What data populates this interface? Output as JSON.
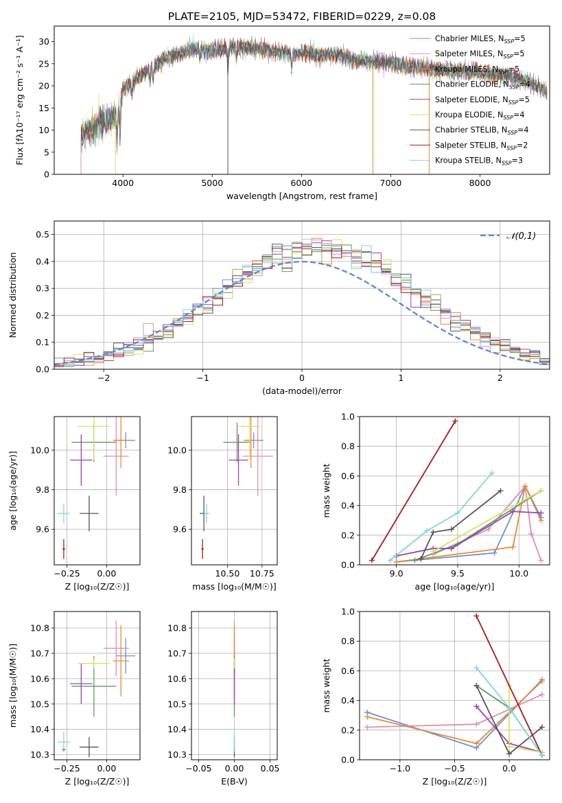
{
  "figure": {
    "title": "PLATE=2105, MJD=53472, FIBERID=0229, z=0.08"
  },
  "colors": {
    "chabrier_miles": "#6b8fd6",
    "salpeter_miles": "#e18bb6",
    "kroupa_miles": "#e88a2a",
    "chabrier_elodie": "#5a9a5e",
    "salpeter_elodie": "#9b3fb8",
    "kroupa_elodie": "#d4e35a",
    "chabrier_stelib": "#555555",
    "salpeter_stelib": "#a81818",
    "kroupa_stelib": "#7fd6dd",
    "gauss": "#5b86d9"
  },
  "chart_data": [
    {
      "id": "spectrum",
      "type": "line",
      "xlabel": "wavelength [Angstrom, rest frame]",
      "ylabel": "Flux [fλ10⁻¹⁷ erg cm⁻² s⁻¹ A⁻¹]",
      "xlim": [
        3230,
        8780
      ],
      "ylim": [
        0,
        33.5
      ],
      "xticks": [
        4000,
        5000,
        6000,
        7000,
        8000
      ],
      "yticks": [
        0,
        5,
        10,
        15,
        20,
        25,
        30
      ],
      "legend_position": "upper-right",
      "series": [
        {
          "key": "chabrier_miles",
          "name": "Chabrier MILES, N",
          "sub": "SSP",
          "nval": "=5"
        },
        {
          "key": "salpeter_miles",
          "name": "Salpeter MILES, N",
          "sub": "SSP",
          "nval": "=5"
        },
        {
          "key": "kroupa_miles",
          "name": "Kroupa MILES, N",
          "sub": "SSP",
          "nval": "=5"
        },
        {
          "key": "chabrier_elodie",
          "name": "Chabrier ELODIE, N",
          "sub": "SSP",
          "nval": "=4"
        },
        {
          "key": "salpeter_elodie",
          "name": "Salpeter ELODIE, N",
          "sub": "SSP",
          "nval": "=5"
        },
        {
          "key": "kroupa_elodie",
          "name": "Kroupa ELODIE, N",
          "sub": "SSP",
          "nval": "=4"
        },
        {
          "key": "chabrier_stelib",
          "name": "Chabrier STELIB, N",
          "sub": "SSP",
          "nval": "=4"
        },
        {
          "key": "salpeter_stelib",
          "name": "Salpeter STELIB, N",
          "sub": "SSP",
          "nval": "=2"
        },
        {
          "key": "kroupa_stelib",
          "name": "Kroupa STELIB, N",
          "sub": "SSP",
          "nval": "=3"
        }
      ],
      "continuum": [
        [
          3530,
          8
        ],
        [
          3600,
          10
        ],
        [
          3700,
          11
        ],
        [
          3800,
          12
        ],
        [
          3900,
          13
        ],
        [
          3960,
          15
        ],
        [
          4000,
          19
        ],
        [
          4100,
          21
        ],
        [
          4200,
          22.5
        ],
        [
          4300,
          23.5
        ],
        [
          4400,
          25
        ],
        [
          4500,
          26.5
        ],
        [
          4600,
          27
        ],
        [
          4700,
          27.5
        ],
        [
          4800,
          28.5
        ],
        [
          5000,
          28
        ],
        [
          5200,
          28.5
        ],
        [
          5400,
          28.5
        ],
        [
          5600,
          28
        ],
        [
          5800,
          27.5
        ],
        [
          5900,
          27
        ],
        [
          6000,
          27.5
        ],
        [
          6200,
          27
        ],
        [
          6400,
          27
        ],
        [
          6600,
          26
        ],
        [
          6800,
          25.5
        ],
        [
          7000,
          25
        ],
        [
          7200,
          24.5
        ],
        [
          7400,
          24
        ],
        [
          7600,
          23.5
        ],
        [
          7800,
          23.5
        ],
        [
          8000,
          22.8
        ],
        [
          8200,
          22.5
        ],
        [
          8400,
          21.8
        ],
        [
          8600,
          20.5
        ],
        [
          8750,
          18.5
        ]
      ],
      "absorption_lines": [
        [
          3934,
          -7
        ],
        [
          3968,
          -6
        ],
        [
          4101,
          -3
        ],
        [
          4304,
          -3
        ],
        [
          4340,
          -3
        ],
        [
          4861,
          -2
        ],
        [
          5175,
          -6
        ],
        [
          5270,
          -2
        ],
        [
          5890,
          -3
        ],
        [
          6563,
          -1
        ]
      ],
      "drop_lines": [
        [
          3530,
          "salpeter_miles"
        ],
        [
          3915,
          "kroupa_elodie"
        ],
        [
          5175,
          "chabrier_stelib"
        ],
        [
          6800,
          "kroupa_miles"
        ],
        [
          7430,
          "kroupa_miles"
        ]
      ]
    },
    {
      "id": "residuals",
      "type": "histogram",
      "xlabel": "(data-model)/error",
      "ylabel": "Normed distribution",
      "xlim": [
        -2.5,
        2.5
      ],
      "ylim": [
        0,
        0.55
      ],
      "xticks": [
        -2,
        -1,
        0,
        1,
        2
      ],
      "yticks": [
        0.0,
        0.1,
        0.2,
        0.3,
        0.4,
        0.5
      ],
      "bin_width": 0.1,
      "legend": {
        "label": "𝒩(0,1)",
        "position": "upper-right"
      },
      "series_keys": [
        "chabrier_miles",
        "salpeter_miles",
        "kroupa_miles",
        "chabrier_elodie",
        "salpeter_elodie",
        "kroupa_elodie",
        "chabrier_stelib",
        "salpeter_stelib",
        "kroupa_stelib"
      ]
    },
    {
      "id": "z_age",
      "type": "scatter",
      "xlabel": "Z [log₁₀(Z/Z☉)]",
      "ylabel": "age  [log₁₀(age/yr)]",
      "xlim": [
        -0.33,
        0.21
      ],
      "ylim": [
        9.42,
        10.17
      ],
      "xticks": [
        -0.25,
        0.0
      ],
      "yticks": [
        9.6,
        9.8,
        10.0
      ],
      "points": [
        {
          "key": "chabrier_miles",
          "x": 0.12,
          "y": 10.05,
          "xe": 0.06,
          "ye": 0.04
        },
        {
          "key": "salpeter_miles",
          "x": 0.06,
          "y": 9.97,
          "xe": 0.08,
          "ye": 0.2
        },
        {
          "key": "kroupa_miles",
          "x": 0.09,
          "y": 10.05,
          "xe": 0.05,
          "ye": 0.14
        },
        {
          "key": "chabrier_elodie",
          "x": -0.08,
          "y": 10.04,
          "xe": 0.14,
          "ye": 0.1
        },
        {
          "key": "salpeter_elodie",
          "x": -0.16,
          "y": 9.95,
          "xe": 0.07,
          "ye": 0.13
        },
        {
          "key": "kroupa_elodie",
          "x": -0.08,
          "y": 10.12,
          "xe": 0.1,
          "ye": 0.17
        },
        {
          "key": "chabrier_stelib",
          "x": -0.11,
          "y": 9.68,
          "xe": 0.06,
          "ye": 0.09
        },
        {
          "key": "salpeter_stelib",
          "x": -0.27,
          "y": 9.5,
          "xe": 0.01,
          "ye": 0.05
        },
        {
          "key": "kroupa_stelib",
          "x": -0.27,
          "y": 9.68,
          "xe": 0.04,
          "ye": 0.05
        }
      ]
    },
    {
      "id": "mass_age",
      "type": "scatter",
      "xlabel": "mass [log₁₀(M/M☉)]",
      "ylabel": "",
      "xlim": [
        10.24,
        10.86
      ],
      "ylim": [
        9.42,
        10.17
      ],
      "xticks": [
        10.5,
        10.75
      ],
      "yticks": [
        9.6,
        9.8,
        10.0
      ],
      "points": [
        {
          "key": "chabrier_miles",
          "x": 10.69,
          "y": 10.05,
          "xe": 0.07,
          "ye": 0.04
        },
        {
          "key": "salpeter_miles",
          "x": 10.72,
          "y": 9.97,
          "xe": 0.11,
          "ye": 0.2
        },
        {
          "key": "kroupa_miles",
          "x": 10.67,
          "y": 10.05,
          "xe": 0.05,
          "ye": 0.14
        },
        {
          "key": "chabrier_elodie",
          "x": 10.57,
          "y": 10.04,
          "xe": 0.1,
          "ye": 0.1
        },
        {
          "key": "salpeter_elodie",
          "x": 10.58,
          "y": 9.95,
          "xe": 0.07,
          "ye": 0.13
        },
        {
          "key": "kroupa_elodie",
          "x": 10.66,
          "y": 10.12,
          "xe": 0.08,
          "ye": 0.17
        },
        {
          "key": "chabrier_stelib",
          "x": 10.33,
          "y": 9.68,
          "xe": 0.03,
          "ye": 0.09
        },
        {
          "key": "salpeter_stelib",
          "x": 10.32,
          "y": 9.5,
          "xe": 0.01,
          "ye": 0.05
        },
        {
          "key": "kroupa_stelib",
          "x": 10.35,
          "y": 9.68,
          "xe": 0.02,
          "ye": 0.05
        }
      ]
    },
    {
      "id": "age_weight",
      "type": "line",
      "xlabel": "age  [log₁₀(age/yr)]",
      "ylabel": "mass weight",
      "xlim": [
        8.7,
        10.25
      ],
      "ylim": [
        0,
        1.0
      ],
      "xticks": [
        9.0,
        9.5,
        10.0
      ],
      "yticks": [
        0.0,
        0.2,
        0.4,
        0.6,
        0.8,
        1.0
      ],
      "series": [
        {
          "key": "chabrier_miles",
          "x": [
            9.0,
            9.8,
            10.05,
            10.18
          ],
          "y": [
            0.02,
            0.08,
            0.53,
            0.32
          ]
        },
        {
          "key": "salpeter_miles",
          "x": [
            9.3,
            9.75,
            10.05,
            10.1,
            10.18
          ],
          "y": [
            0.07,
            0.24,
            0.53,
            0.21,
            0.03
          ]
        },
        {
          "key": "kroupa_miles",
          "x": [
            9.0,
            9.95,
            10.05,
            10.18
          ],
          "y": [
            0.02,
            0.12,
            0.53,
            0.3
          ]
        },
        {
          "key": "chabrier_elodie",
          "x": [
            9.15,
            9.5,
            10.18
          ],
          "y": [
            0.03,
            0.14,
            0.5
          ]
        },
        {
          "key": "salpeter_elodie",
          "x": [
            9.0,
            9.3,
            9.45,
            9.95,
            10.18
          ],
          "y": [
            0.06,
            0.11,
            0.11,
            0.36,
            0.35
          ]
        },
        {
          "key": "kroupa_elodie",
          "x": [
            9.3,
            10.18
          ],
          "y": [
            0.09,
            0.5
          ]
        },
        {
          "key": "chabrier_stelib",
          "x": [
            9.2,
            9.3,
            9.45,
            9.85
          ],
          "y": [
            0.04,
            0.22,
            0.24,
            0.5
          ]
        },
        {
          "key": "salpeter_stelib",
          "x": [
            8.8,
            9.48
          ],
          "y": [
            0.03,
            0.97
          ]
        },
        {
          "key": "kroupa_stelib",
          "x": [
            8.95,
            9.25,
            9.5,
            9.78
          ],
          "y": [
            0.03,
            0.23,
            0.35,
            0.62
          ]
        }
      ]
    },
    {
      "id": "z_mass",
      "type": "scatter",
      "xlabel": "Z [log₁₀(Z/Z☉)]",
      "ylabel": "mass [log₁₀(M/M☉)]",
      "xlim": [
        -0.33,
        0.21
      ],
      "ylim": [
        10.28,
        10.865
      ],
      "xticks": [
        -0.25,
        0.0
      ],
      "yticks": [
        10.3,
        10.4,
        10.5,
        10.6,
        10.7,
        10.8
      ],
      "points": [
        {
          "key": "chabrier_miles",
          "x": 0.12,
          "y": 10.69,
          "xe": 0.06,
          "ye": 0.07
        },
        {
          "key": "salpeter_miles",
          "x": 0.06,
          "y": 10.72,
          "xe": 0.08,
          "ye": 0.11
        },
        {
          "key": "kroupa_miles",
          "x": 0.09,
          "y": 10.67,
          "xe": 0.05,
          "ye": 0.14
        },
        {
          "key": "chabrier_elodie",
          "x": -0.08,
          "y": 10.57,
          "xe": 0.14,
          "ye": 0.12
        },
        {
          "key": "salpeter_elodie",
          "x": -0.16,
          "y": 10.58,
          "xe": 0.07,
          "ye": 0.08
        },
        {
          "key": "kroupa_elodie",
          "x": -0.08,
          "y": 10.66,
          "xe": 0.1,
          "ye": 0.02
        },
        {
          "key": "chabrier_stelib",
          "x": -0.11,
          "y": 10.33,
          "xe": 0.06,
          "ye": 0.04
        },
        {
          "key": "salpeter_stelib",
          "x": -0.27,
          "y": 10.32,
          "xe": 0.01,
          "ye": 0.01
        },
        {
          "key": "kroupa_stelib",
          "x": -0.27,
          "y": 10.35,
          "xe": 0.04,
          "ye": 0.04
        }
      ]
    },
    {
      "id": "ebv_mass",
      "type": "scatter",
      "xlabel": "E(B-V)",
      "ylabel": "",
      "xlim": [
        -0.06,
        0.06
      ],
      "ylim": [
        10.28,
        10.865
      ],
      "xticks": [
        -0.05,
        0.0,
        0.05
      ],
      "yticks": [
        10.3,
        10.4,
        10.5,
        10.6,
        10.7,
        10.8
      ],
      "points": [
        {
          "key": "chabrier_miles",
          "x": 0.0,
          "y": 10.69,
          "xe": 0.0,
          "ye": 0.07
        },
        {
          "key": "salpeter_miles",
          "x": 0.0,
          "y": 10.72,
          "xe": 0.0,
          "ye": 0.11
        },
        {
          "key": "kroupa_miles",
          "x": 0.0,
          "y": 10.67,
          "xe": 0.0,
          "ye": 0.14
        },
        {
          "key": "chabrier_elodie",
          "x": 0.0,
          "y": 10.57,
          "xe": 0.0,
          "ye": 0.12
        },
        {
          "key": "salpeter_elodie",
          "x": 0.0,
          "y": 10.58,
          "xe": 0.0,
          "ye": 0.08
        },
        {
          "key": "kroupa_elodie",
          "x": 0.0,
          "y": 10.66,
          "xe": 0.0,
          "ye": 0.02
        },
        {
          "key": "chabrier_stelib",
          "x": 0.0,
          "y": 10.33,
          "xe": 0.0,
          "ye": 0.04
        },
        {
          "key": "salpeter_stelib",
          "x": 0.0,
          "y": 10.32,
          "xe": 0.0,
          "ye": 0.01
        },
        {
          "key": "kroupa_stelib",
          "x": 0.0,
          "y": 10.35,
          "xe": 0.0,
          "ye": 0.04
        }
      ]
    },
    {
      "id": "z_weight",
      "type": "line",
      "xlabel": "Z [log₁₀(Z/Z☉)]",
      "ylabel": "mass weight",
      "xlim": [
        -1.37,
        0.37
      ],
      "ylim": [
        0,
        1.0
      ],
      "xticks": [
        -1.0,
        -0.5,
        0.0
      ],
      "yticks": [
        0.0,
        0.2,
        0.4,
        0.6,
        0.8,
        1.0
      ],
      "series": [
        {
          "key": "chabrier_miles",
          "x": [
            -1.3,
            -0.3,
            0.3
          ],
          "y": [
            0.32,
            0.08,
            0.54
          ]
        },
        {
          "key": "salpeter_miles",
          "x": [
            -1.3,
            -0.3,
            0.3
          ],
          "y": [
            0.22,
            0.24,
            0.44
          ]
        },
        {
          "key": "kroupa_miles",
          "x": [
            -1.3,
            -0.3,
            0.3
          ],
          "y": [
            0.29,
            0.11,
            0.53
          ]
        },
        {
          "key": "chabrier_elodie",
          "x": [
            -0.3,
            0.0,
            0.3
          ],
          "y": [
            0.5,
            0.35,
            0.03
          ]
        },
        {
          "key": "salpeter_elodie",
          "x": [
            -0.3,
            0.0,
            0.3
          ],
          "y": [
            0.36,
            0.11,
            0.05
          ]
        },
        {
          "key": "kroupa_elodie",
          "x": [
            0.0,
            0.0,
            0.3
          ],
          "y": [
            0.5,
            0.09,
            0.05
          ]
        },
        {
          "key": "chabrier_stelib",
          "x": [
            -0.3,
            0.0,
            0.3
          ],
          "y": [
            0.5,
            0.04,
            0.22
          ]
        },
        {
          "key": "salpeter_stelib",
          "x": [
            -0.3,
            0.3
          ],
          "y": [
            0.97,
            0.03
          ]
        },
        {
          "key": "kroupa_stelib",
          "x": [
            -0.3,
            0.0,
            0.3
          ],
          "y": [
            0.62,
            0.35,
            0.03
          ]
        }
      ]
    }
  ]
}
